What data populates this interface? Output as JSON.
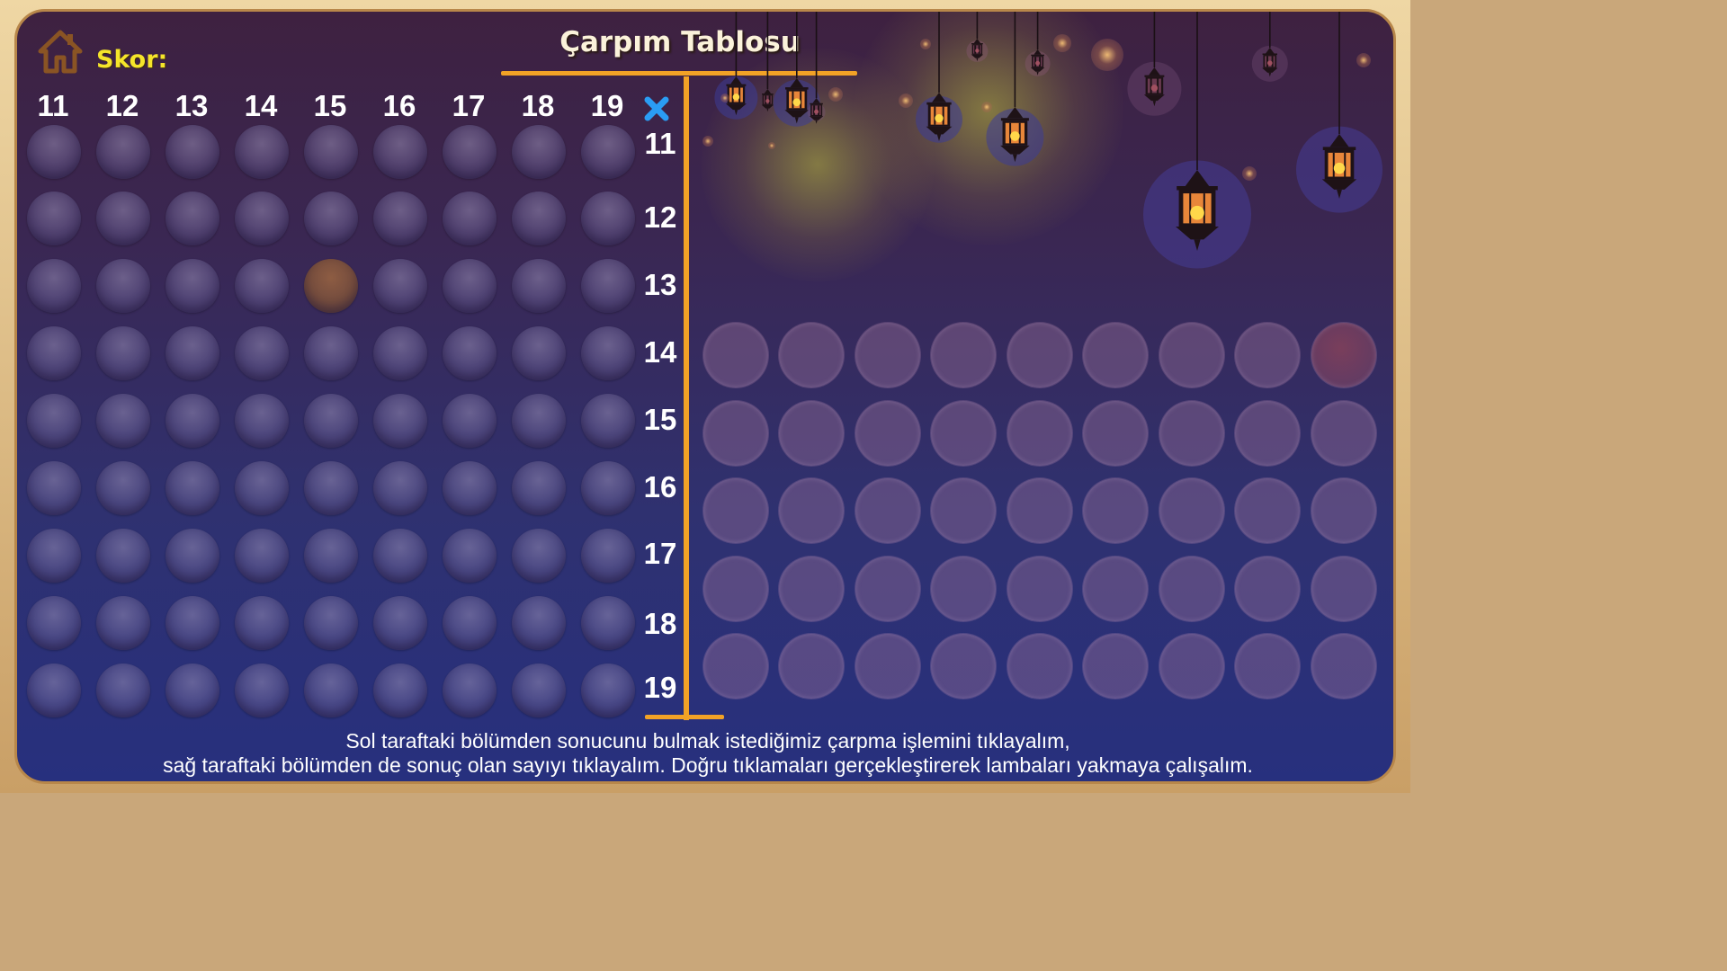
{
  "title": "Çarpım Tablosu",
  "score": {
    "label": "Skor:"
  },
  "icons": {
    "home": "home-icon",
    "operator": "multiply-icon"
  },
  "column_headers": [
    "11",
    "12",
    "13",
    "14",
    "15",
    "16",
    "17",
    "18",
    "19"
  ],
  "row_headers": [
    "11",
    "12",
    "13",
    "14",
    "15",
    "16",
    "17",
    "18",
    "19"
  ],
  "left_grid": {
    "rows": 9,
    "cols": 9,
    "selected_cell": {
      "row": "13",
      "col": "15"
    }
  },
  "right_grid": {
    "rows": 5,
    "cols": 9,
    "highlighted_cell": {
      "row": 1,
      "col": 9
    }
  },
  "instructions": {
    "line1": "Sol taraftaki bölümden sonucunu bulmak istediğimiz çarpma işlemini tıklayalım,",
    "line2": "sağ taraftaki bölümden de sonuç olan sayıyı tıklayalım. Doğru tıklamaları gerçekleştirerek lambaları yakmaya çalışalım."
  },
  "colors": {
    "accent_line": "#f2a226",
    "score_text": "#f5e52a",
    "operator_icon": "#2a9df4",
    "frame": "#d9b27c"
  }
}
